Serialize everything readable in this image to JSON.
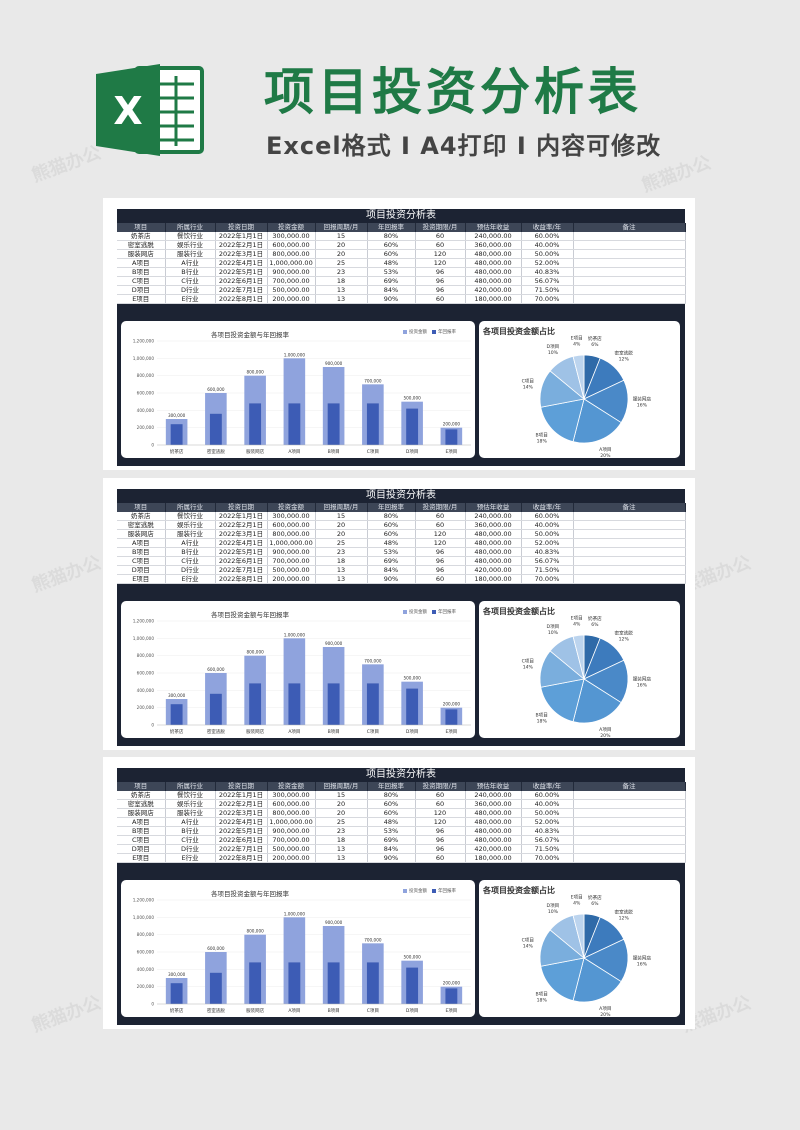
{
  "header": {
    "logo_letter": "X",
    "title": "项目投资分析表",
    "subtitle": "Excel格式 I A4打印 I 内容可修改"
  },
  "table": {
    "title": "项目投资分析表",
    "columns": [
      "项目",
      "所属行业",
      "投资日期",
      "投资金额",
      "回报周期/月",
      "年回报率",
      "投资期限/月",
      "预估年收益",
      "收益率/年",
      "备注"
    ],
    "rows": [
      [
        "奶茶店",
        "餐饮行业",
        "2022年1月1日",
        "300,000.00",
        "15",
        "80%",
        "60",
        "240,000.00",
        "60.00%",
        ""
      ],
      [
        "密室逃脱",
        "娱乐行业",
        "2022年2月1日",
        "600,000.00",
        "20",
        "60%",
        "60",
        "360,000.00",
        "40.00%",
        ""
      ],
      [
        "服装网店",
        "服装行业",
        "2022年3月1日",
        "800,000.00",
        "20",
        "60%",
        "120",
        "480,000.00",
        "50.00%",
        ""
      ],
      [
        "A项目",
        "A行业",
        "2022年4月1日",
        "1,000,000.00",
        "25",
        "48%",
        "120",
        "480,000.00",
        "52.00%",
        ""
      ],
      [
        "B项目",
        "B行业",
        "2022年5月1日",
        "900,000.00",
        "23",
        "53%",
        "96",
        "480,000.00",
        "40.83%",
        ""
      ],
      [
        "C项目",
        "C行业",
        "2022年6月1日",
        "700,000.00",
        "18",
        "69%",
        "96",
        "480,000.00",
        "56.07%",
        ""
      ],
      [
        "D项目",
        "D行业",
        "2022年7月1日",
        "500,000.00",
        "13",
        "84%",
        "96",
        "420,000.00",
        "71.50%",
        ""
      ],
      [
        "E项目",
        "E行业",
        "2022年8月1日",
        "200,000.00",
        "13",
        "90%",
        "60",
        "180,000.00",
        "70.00%",
        ""
      ]
    ]
  },
  "colors": {
    "bar_light": "#8fa3dd",
    "bar_dark": "#3d5cb5",
    "panel_dark": "#1c2333",
    "brand_green": "#1f7a46"
  },
  "chart_data": [
    {
      "type": "bar",
      "title": "各项目投资金额与年回报率",
      "categories": [
        "奶茶店",
        "密室逃脱",
        "服装网店",
        "A项目",
        "B项目",
        "C项目",
        "D项目",
        "E项目"
      ],
      "series": [
        {
          "name": "投资金额",
          "values": [
            300000,
            600000,
            800000,
            1000000,
            900000,
            700000,
            500000,
            200000
          ]
        },
        {
          "name": "年回报率",
          "values": [
            240000,
            360000,
            480000,
            480000,
            480000,
            480000,
            420000,
            180000
          ]
        }
      ],
      "value_labels": [
        "300,000",
        "600,000",
        "800,000",
        "1,000,000",
        "900,000",
        "700,000",
        "500,000",
        "200,000"
      ],
      "ylim": [
        0,
        1200000
      ],
      "yticks": [
        "0",
        "200,000",
        "400,000",
        "600,000",
        "800,000",
        "1,000,000",
        "1,200,000"
      ],
      "legend_position": "top-right"
    },
    {
      "type": "pie",
      "title": "各项目投资金额占比",
      "labels": [
        "奶茶店",
        "密室逃脱",
        "服装网店",
        "A项目",
        "B项目",
        "C项目",
        "D项目",
        "E项目"
      ],
      "values": [
        6,
        12,
        16,
        20,
        18,
        14,
        10,
        4
      ],
      "pct_labels": [
        "6%",
        "12%",
        "16%",
        "20%",
        "18%",
        "14%",
        "10%",
        "4%"
      ]
    }
  ]
}
